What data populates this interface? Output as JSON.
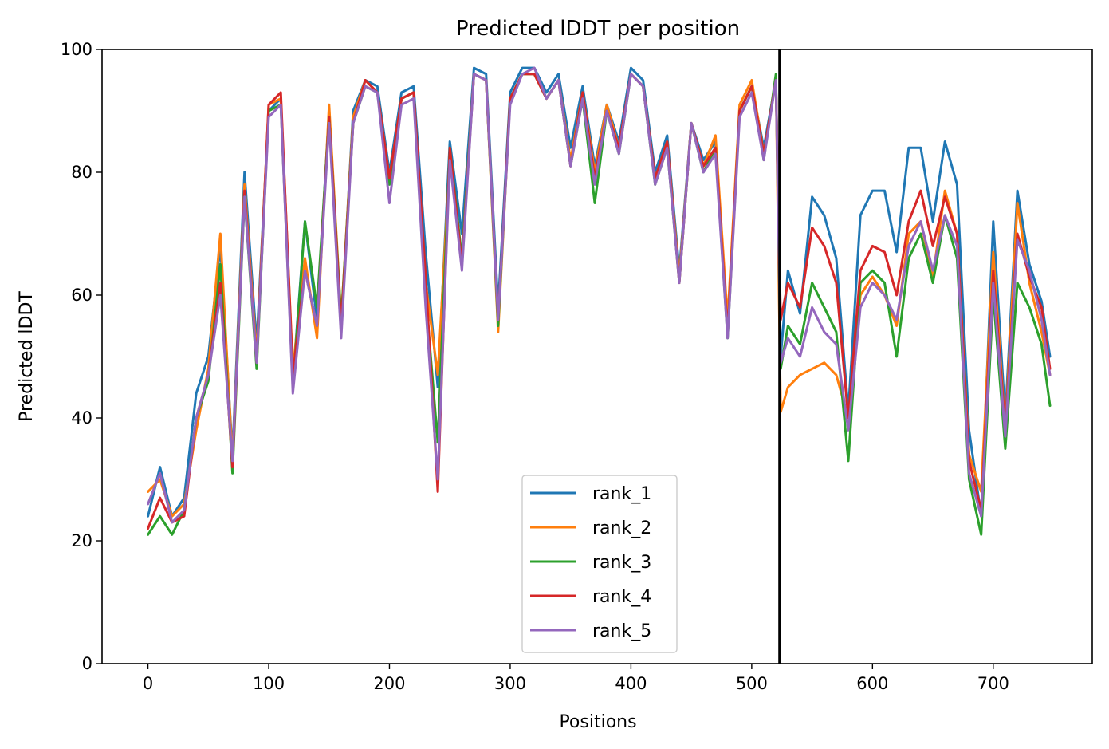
{
  "chart_data": {
    "type": "line",
    "title": "Predicted lDDT per position",
    "xlabel": "Positions",
    "ylabel": "Predicted lDDT",
    "xlim": [
      -38,
      782
    ],
    "ylim": [
      0,
      100
    ],
    "xticks": [
      0,
      100,
      200,
      300,
      400,
      500,
      600,
      700
    ],
    "yticks": [
      0,
      20,
      40,
      60,
      80,
      100
    ],
    "grid": false,
    "legend_position": "lower center",
    "vline_x": 523,
    "series": [
      {
        "name": "rank_1",
        "color": "#1f77b4",
        "x": [
          0,
          10,
          20,
          30,
          40,
          50,
          60,
          70,
          80,
          90,
          100,
          110,
          120,
          130,
          140,
          150,
          160,
          170,
          180,
          190,
          200,
          210,
          220,
          230,
          240,
          250,
          260,
          270,
          280,
          290,
          300,
          310,
          320,
          330,
          340,
          350,
          360,
          370,
          380,
          390,
          400,
          410,
          420,
          430,
          440,
          450,
          460,
          470,
          480,
          490,
          500,
          510,
          520,
          524,
          530,
          540,
          550,
          560,
          570,
          580,
          590,
          600,
          610,
          620,
          630,
          640,
          650,
          660,
          670,
          680,
          690,
          700,
          710,
          720,
          730,
          740,
          747
        ],
        "values": [
          24,
          32,
          24,
          27,
          44,
          50,
          68,
          34,
          80,
          52,
          90,
          92,
          46,
          72,
          56,
          90,
          55,
          90,
          95,
          94,
          80,
          93,
          94,
          67,
          45,
          85,
          70,
          97,
          96,
          58,
          93,
          97,
          97,
          93,
          96,
          84,
          94,
          81,
          91,
          85,
          97,
          95,
          80,
          86,
          64,
          88,
          82,
          85,
          55,
          90,
          94,
          84,
          95,
          50,
          64,
          57,
          76,
          73,
          66,
          41,
          73,
          77,
          77,
          67,
          84,
          84,
          72,
          85,
          78,
          38,
          24,
          72,
          40,
          77,
          65,
          59,
          50
        ]
      },
      {
        "name": "rank_2",
        "color": "#ff7f0e",
        "x": [
          0,
          10,
          20,
          30,
          40,
          50,
          60,
          70,
          80,
          90,
          100,
          110,
          120,
          130,
          140,
          150,
          160,
          170,
          180,
          190,
          200,
          210,
          220,
          230,
          240,
          250,
          260,
          270,
          280,
          290,
          300,
          310,
          320,
          330,
          340,
          350,
          360,
          370,
          380,
          390,
          400,
          410,
          420,
          430,
          440,
          450,
          460,
          470,
          480,
          490,
          500,
          510,
          520,
          524,
          530,
          540,
          550,
          560,
          570,
          580,
          590,
          600,
          610,
          620,
          630,
          640,
          650,
          660,
          670,
          680,
          690,
          700,
          710,
          720,
          730,
          740,
          747
        ],
        "values": [
          28,
          30,
          24,
          26,
          38,
          48,
          70,
          33,
          78,
          50,
          91,
          92,
          48,
          66,
          53,
          91,
          56,
          89,
          95,
          93,
          79,
          92,
          93,
          62,
          47,
          82,
          66,
          96,
          95,
          54,
          92,
          96,
          96,
          92,
          95,
          82,
          93,
          80,
          91,
          84,
          96,
          94,
          79,
          85,
          63,
          88,
          81,
          86,
          56,
          91,
          95,
          83,
          95,
          41,
          45,
          47,
          48,
          49,
          47,
          40,
          60,
          63,
          60,
          55,
          70,
          72,
          63,
          77,
          70,
          34,
          28,
          67,
          38,
          75,
          62,
          54,
          47
        ]
      },
      {
        "name": "rank_3",
        "color": "#2ca02c",
        "x": [
          0,
          10,
          20,
          30,
          40,
          50,
          60,
          70,
          80,
          90,
          100,
          110,
          120,
          130,
          140,
          150,
          160,
          170,
          180,
          190,
          200,
          210,
          220,
          230,
          240,
          250,
          260,
          270,
          280,
          290,
          300,
          310,
          320,
          330,
          340,
          350,
          360,
          370,
          380,
          390,
          400,
          410,
          420,
          430,
          440,
          450,
          460,
          470,
          480,
          490,
          500,
          510,
          520,
          524,
          530,
          540,
          550,
          560,
          570,
          580,
          590,
          600,
          610,
          620,
          630,
          640,
          650,
          660,
          670,
          680,
          690,
          700,
          710,
          720,
          730,
          740,
          747
        ],
        "values": [
          21,
          24,
          21,
          25,
          40,
          46,
          65,
          31,
          76,
          48,
          90,
          91,
          45,
          72,
          58,
          89,
          56,
          88,
          94,
          93,
          78,
          92,
          93,
          60,
          36,
          84,
          66,
          96,
          95,
          55,
          92,
          96,
          96,
          92,
          95,
          81,
          92,
          75,
          90,
          83,
          96,
          94,
          78,
          84,
          62,
          88,
          80,
          84,
          53,
          90,
          94,
          82,
          96,
          48,
          55,
          52,
          62,
          58,
          54,
          33,
          62,
          64,
          62,
          50,
          66,
          70,
          62,
          73,
          66,
          30,
          21,
          60,
          35,
          62,
          58,
          52,
          42
        ]
      },
      {
        "name": "rank_4",
        "color": "#d62728",
        "x": [
          0,
          10,
          20,
          30,
          40,
          50,
          60,
          70,
          80,
          90,
          100,
          110,
          120,
          130,
          140,
          150,
          160,
          170,
          180,
          190,
          200,
          210,
          220,
          230,
          240,
          250,
          260,
          270,
          280,
          290,
          300,
          310,
          320,
          330,
          340,
          350,
          360,
          370,
          380,
          390,
          400,
          410,
          420,
          430,
          440,
          450,
          460,
          470,
          480,
          490,
          500,
          510,
          520,
          524,
          530,
          540,
          550,
          560,
          570,
          580,
          590,
          600,
          610,
          620,
          630,
          640,
          650,
          660,
          670,
          680,
          690,
          700,
          710,
          720,
          730,
          740,
          747
        ],
        "values": [
          22,
          27,
          23,
          24,
          40,
          47,
          62,
          32,
          77,
          49,
          91,
          93,
          47,
          64,
          55,
          89,
          55,
          88,
          95,
          93,
          79,
          92,
          93,
          63,
          28,
          84,
          65,
          96,
          95,
          56,
          92,
          96,
          96,
          92,
          95,
          81,
          93,
          79,
          90,
          84,
          96,
          94,
          79,
          85,
          62,
          88,
          81,
          84,
          54,
          90,
          94,
          83,
          95,
          56,
          62,
          58,
          71,
          68,
          62,
          40,
          64,
          68,
          67,
          60,
          72,
          77,
          68,
          76,
          70,
          33,
          25,
          64,
          38,
          70,
          63,
          58,
          48
        ]
      },
      {
        "name": "rank_5",
        "color": "#9467bd",
        "x": [
          0,
          10,
          20,
          30,
          40,
          50,
          60,
          70,
          80,
          90,
          100,
          110,
          120,
          130,
          140,
          150,
          160,
          170,
          180,
          190,
          200,
          210,
          220,
          230,
          240,
          250,
          260,
          270,
          280,
          290,
          300,
          310,
          320,
          330,
          340,
          350,
          360,
          370,
          380,
          390,
          400,
          410,
          420,
          430,
          440,
          450,
          460,
          470,
          480,
          490,
          500,
          510,
          520,
          524,
          530,
          540,
          550,
          560,
          570,
          580,
          590,
          600,
          610,
          620,
          630,
          640,
          650,
          660,
          670,
          680,
          690,
          700,
          710,
          720,
          730,
          740,
          747
        ],
        "values": [
          26,
          31,
          23,
          25,
          40,
          47,
          60,
          33,
          76,
          49,
          89,
          91,
          44,
          64,
          55,
          88,
          53,
          88,
          94,
          93,
          75,
          91,
          92,
          58,
          30,
          82,
          64,
          96,
          95,
          56,
          91,
          96,
          97,
          92,
          95,
          81,
          92,
          78,
          90,
          83,
          96,
          94,
          78,
          84,
          62,
          88,
          80,
          83,
          53,
          89,
          93,
          82,
          95,
          49,
          53,
          50,
          58,
          54,
          52,
          38,
          58,
          62,
          60,
          56,
          68,
          72,
          64,
          73,
          68,
          31,
          24,
          62,
          37,
          69,
          64,
          56,
          47
        ]
      }
    ]
  }
}
